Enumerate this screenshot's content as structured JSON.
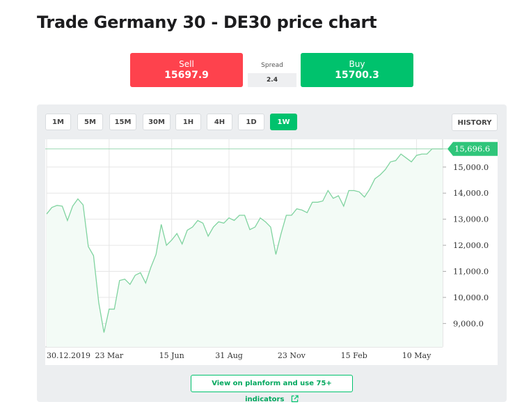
{
  "page": {
    "title": "Trade Germany 30 - DE30 price chart"
  },
  "trade": {
    "sell_label": "Sell",
    "sell_price": "15697.9",
    "spread_label": "Spread",
    "spread_value": "2.4",
    "buy_label": "Buy",
    "buy_price": "15700.3"
  },
  "timeframes": [
    "1M",
    "5M",
    "15M",
    "30M",
    "1H",
    "4H",
    "1D",
    "1W"
  ],
  "active_timeframe": "1W",
  "history_label": "HISTORY",
  "cta_label": "View on planform and use 75+ indicators",
  "colors": {
    "sell": "#fe424d",
    "buy": "#00c26d",
    "line": "#7fd39f",
    "fill": "#f3fbf6",
    "grid": "#e6e6e6"
  },
  "chart_data": {
    "type": "area",
    "x_tick_labels": [
      "30.12.2019",
      "23 Mar",
      "15 Jun",
      "31 Aug",
      "23 Nov",
      "15 Feb",
      "10 May"
    ],
    "x_tick_index": [
      0,
      12,
      24,
      35,
      47,
      59,
      71
    ],
    "y_tick_labels": [
      "15,000.0",
      "14,000.0",
      "13,000.0",
      "12,000.0",
      "11,000.0",
      "10,000.0",
      "9,000.0"
    ],
    "y_ticks": [
      15000,
      14000,
      13000,
      12000,
      11000,
      10000,
      9000
    ],
    "ylim": [
      8100,
      15850
    ],
    "last_price": 15696.6,
    "last_price_label": "15,696.6",
    "values": [
      13200,
      13450,
      13530,
      13500,
      12950,
      13500,
      13780,
      13550,
      11950,
      11600,
      9800,
      8650,
      9550,
      9550,
      10650,
      10700,
      10500,
      10850,
      10950,
      10550,
      11150,
      11650,
      12800,
      12000,
      12200,
      12450,
      12050,
      12580,
      12700,
      12950,
      12850,
      12350,
      12700,
      12900,
      12850,
      13050,
      12950,
      13150,
      13150,
      12600,
      12700,
      13050,
      12900,
      12700,
      11650,
      12450,
      13150,
      13150,
      13400,
      13350,
      13250,
      13650,
      13650,
      13700,
      14100,
      13800,
      13900,
      13500,
      14100,
      14100,
      14050,
      13850,
      14150,
      14550,
      14700,
      14900,
      15200,
      15250,
      15500,
      15350,
      15200,
      15450,
      15500,
      15500,
      15700,
      15700,
      15696.6
    ]
  }
}
